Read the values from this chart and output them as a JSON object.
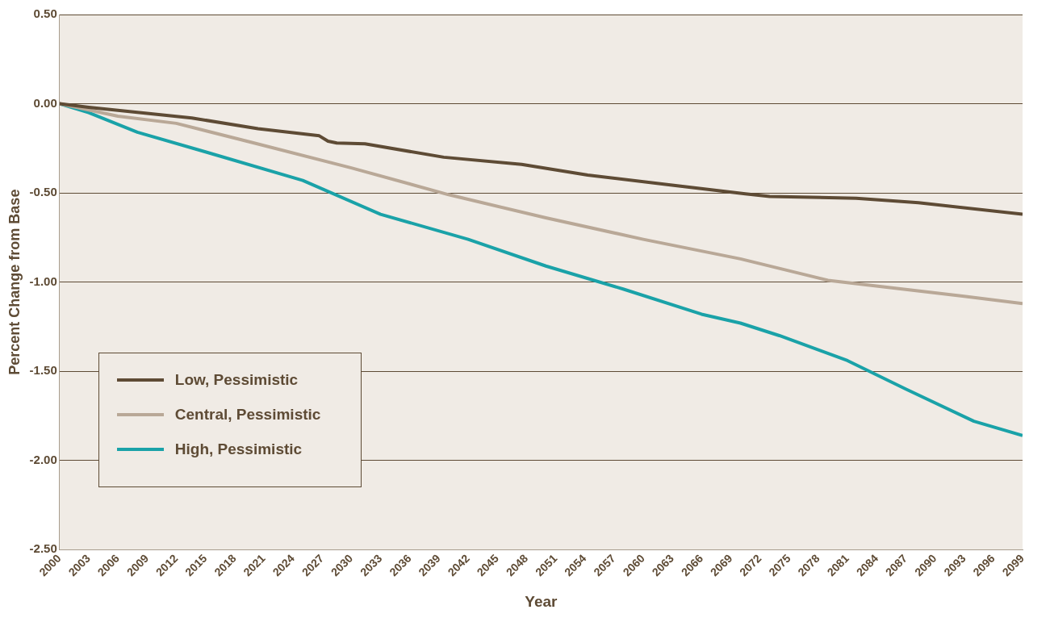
{
  "chart_data": {
    "type": "line",
    "xlabel": "Year",
    "ylabel": "Percent Change from Base",
    "xlim": [
      2000,
      2099
    ],
    "xticks": [
      2000,
      2003,
      2006,
      2009,
      2012,
      2015,
      2018,
      2021,
      2024,
      2027,
      2030,
      2033,
      2036,
      2039,
      2042,
      2045,
      2048,
      2051,
      2054,
      2057,
      2060,
      2063,
      2066,
      2069,
      2072,
      2075,
      2078,
      2081,
      2084,
      2087,
      2090,
      2093,
      2096,
      2099
    ],
    "ylim": [
      -2.5,
      0.5
    ],
    "yticks": [
      {
        "value": 0.5,
        "label": "0.50"
      },
      {
        "value": 0,
        "label": "0.00"
      },
      {
        "value": -0.5,
        "label": "-0.50"
      },
      {
        "value": -1,
        "label": "-1.00"
      },
      {
        "value": -1.5,
        "label": "-1.50"
      },
      {
        "value": -2,
        "label": "-2.00"
      },
      {
        "value": -2.5,
        "label": "-2.50"
      }
    ],
    "grid": "y",
    "legend": "bottom left",
    "marker": "none",
    "line_style": "solid",
    "series": [
      {
        "name": "Low, Pessimistic",
        "color": "#5e4b35",
        "x": [
          2000,
          2003,
          2013.6,
          2020.4,
          2026.7,
          2027.6,
          2028.5,
          2031.4,
          2039.5,
          2047.5,
          2054.3,
          2062.8,
          2070.5,
          2073,
          2081.9,
          2088.3,
          2099
        ],
        "values": [
          0,
          -0.02,
          -0.08,
          -0.14,
          -0.18,
          -0.21,
          -0.22,
          -0.225,
          -0.3,
          -0.34,
          -0.4,
          -0.455,
          -0.505,
          -0.52,
          -0.53,
          -0.555,
          -0.62
        ]
      },
      {
        "name": "Central, Pessimistic",
        "color": "#b9a897",
        "x": [
          2000,
          2006,
          2012,
          2020,
          2030,
          2040,
          2050,
          2060,
          2070,
          2079,
          2090,
          2093,
          2099
        ],
        "values": [
          0,
          -0.07,
          -0.11,
          -0.22,
          -0.36,
          -0.51,
          -0.64,
          -0.76,
          -0.87,
          -0.99,
          -1.06,
          -1.08,
          -1.12
        ]
      },
      {
        "name": "High, Pessimistic",
        "color": "#1aa2a8",
        "x": [
          2000,
          2003,
          2008,
          2015,
          2025,
          2033,
          2042,
          2050,
          2058,
          2066,
          2070,
          2074,
          2081,
          2087,
          2094,
          2099
        ],
        "values": [
          0,
          -0.05,
          -0.16,
          -0.27,
          -0.43,
          -0.62,
          -0.76,
          -0.91,
          -1.04,
          -1.18,
          -1.23,
          -1.3,
          -1.44,
          -1.6,
          -1.78,
          -1.86
        ]
      }
    ]
  }
}
